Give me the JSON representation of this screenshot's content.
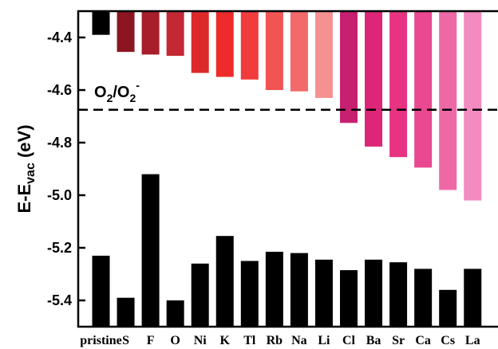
{
  "chart_data": {
    "type": "bar",
    "categories": [
      "pristine",
      "S",
      "F",
      "O",
      "Ni",
      "K",
      "Tl",
      "Rb",
      "Na",
      "Li",
      "Cl",
      "Ba",
      "Sr",
      "Ca",
      "Cs",
      "La"
    ],
    "ylabel": {
      "main": "E-E",
      "sub": "vac",
      "unit": " (eV)"
    },
    "ylim": [
      -5.5,
      -4.3
    ],
    "yticks": [
      -5.4,
      -5.2,
      -5.0,
      -4.8,
      -4.6,
      -4.4
    ],
    "ytick_labels": [
      "-5.4",
      "-5.2",
      "-5.0",
      "-4.8",
      "-4.6",
      "-4.4"
    ],
    "top_bar_baseline": -4.3,
    "bottom_bar_baseline": -5.5,
    "series": [
      {
        "values": [
          -4.39,
          -4.455,
          -4.465,
          -4.47,
          -4.535,
          -4.55,
          -4.56,
          -4.6,
          -4.605,
          -4.63,
          -4.725,
          -4.815,
          -4.855,
          -4.895,
          -4.98,
          -5.02
        ],
        "colors": [
          "#000000",
          "#8b1520",
          "#a81e2a",
          "#c42835",
          "#dc2a2a",
          "#ee2a2a",
          "#f03c3c",
          "#f25454",
          "#f26a6a",
          "#f79090",
          "#c82070",
          "#dd2678",
          "#e83282",
          "#ea4890",
          "#ef68a6",
          "#f38ac0"
        ]
      },
      {
        "values": [
          -5.23,
          -5.39,
          -4.92,
          -5.4,
          -5.26,
          -5.155,
          -5.25,
          -5.215,
          -5.22,
          -5.245,
          -5.285,
          -5.245,
          -5.255,
          -5.28,
          -5.36,
          -5.28
        ],
        "colors": [
          "#000000"
        ]
      }
    ],
    "reference_line": {
      "value": -4.675,
      "label_base": "O",
      "label_sub": "2",
      "label_mid": "/O",
      "label_sub2": "2",
      "label_sup": "-",
      "style": "dashed"
    },
    "grid": false,
    "legend": "none"
  }
}
